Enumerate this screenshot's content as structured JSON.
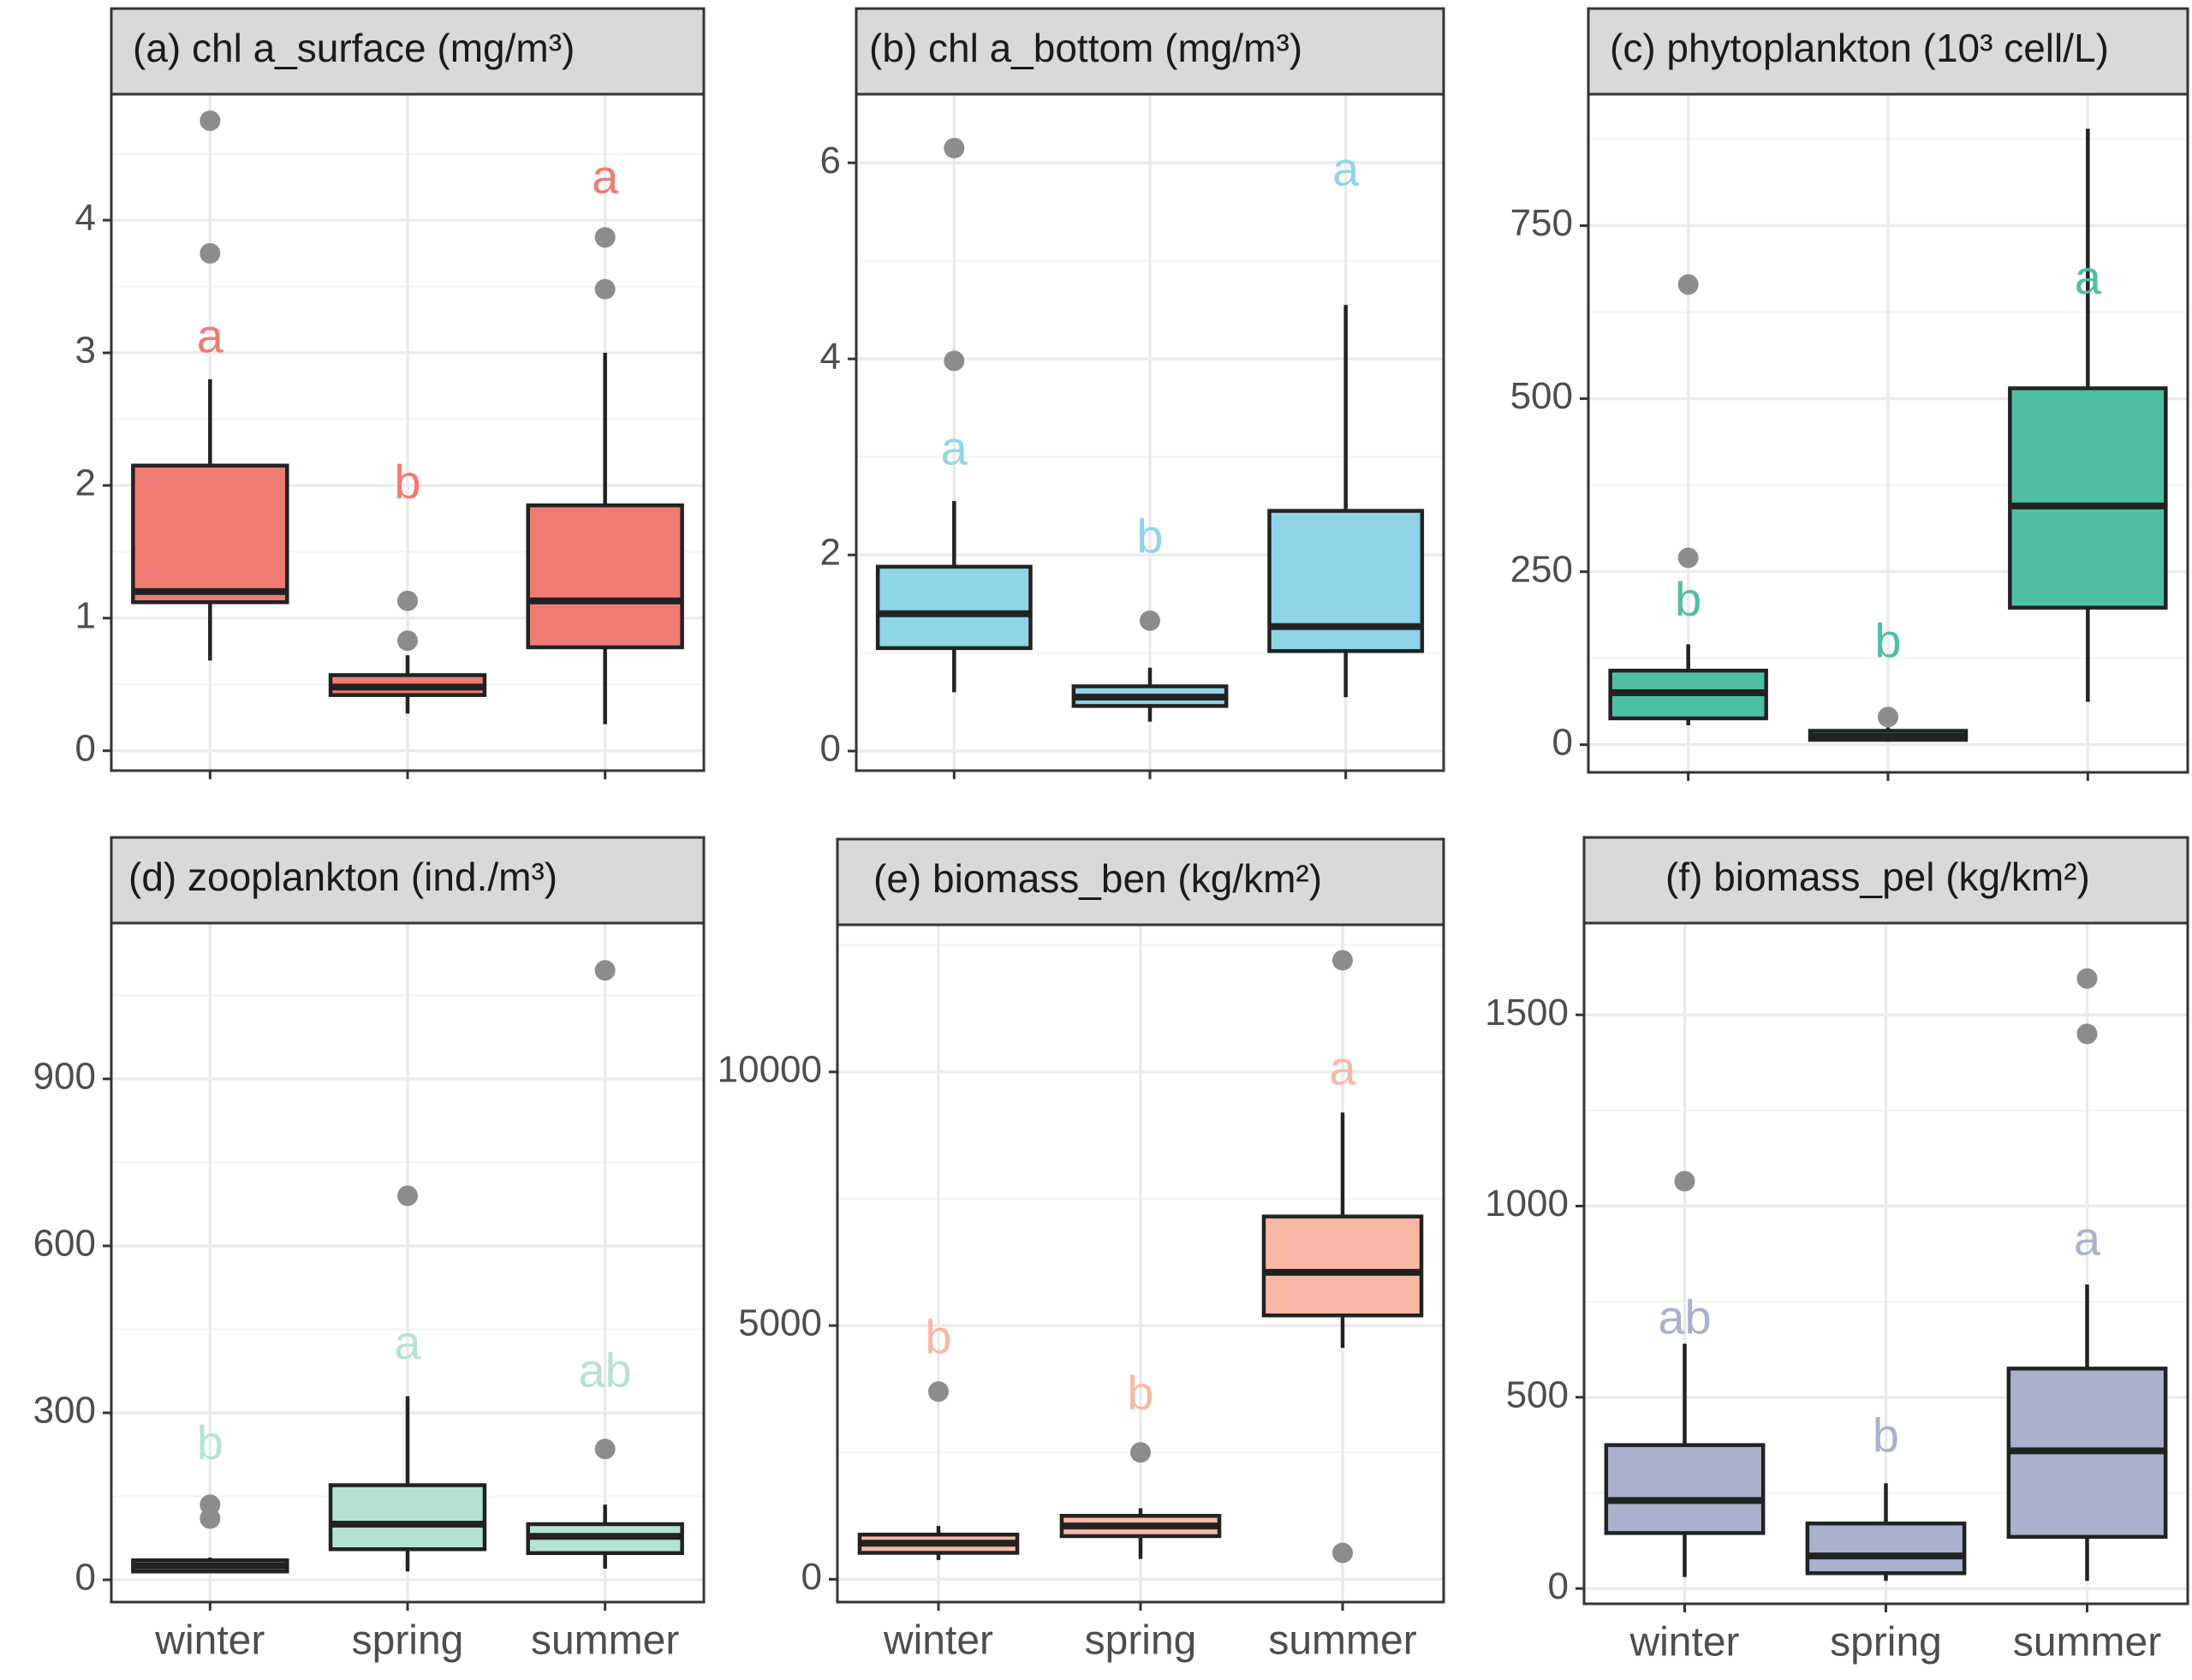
{
  "colors": {
    "panel_a": "#f07b72",
    "panel_b": "#8fd4e8",
    "panel_c": "#4fbfa3",
    "panel_d": "#b5e3d3",
    "panel_e": "#f8b8a5",
    "panel_f": "#aab1cd",
    "outlier": "#8c8c8c",
    "strip": "#d9d9d9",
    "grid": "#ebebeb",
    "frame": "#333333"
  },
  "chart_data": [
    {
      "id": "a",
      "type": "box",
      "title": "(a) chl a_surface (mg/m³)",
      "categories": [
        "winter",
        "spring",
        "summer"
      ],
      "ylim": [
        -0.15,
        4.95
      ],
      "yticks": [
        0,
        1,
        2,
        3,
        4
      ],
      "ytick_labels": [
        "0",
        "1",
        "2",
        "3",
        "4"
      ],
      "minor_ticks": [
        0.5,
        1.5,
        2.5,
        3.5,
        4.5
      ],
      "color_key": "panel_a",
      "show_x_labels": false,
      "boxes": [
        {
          "low": 0.68,
          "q1": 1.12,
          "median": 1.2,
          "q3": 2.15,
          "high": 2.8,
          "outliers": [
            3.75,
            4.75
          ]
        },
        {
          "low": 0.28,
          "q1": 0.42,
          "median": 0.48,
          "q3": 0.57,
          "high": 0.72,
          "outliers": [
            0.83,
            1.13
          ]
        },
        {
          "low": 0.2,
          "q1": 0.78,
          "median": 1.13,
          "q3": 1.85,
          "high": 3.0,
          "outliers": [
            3.48,
            3.87
          ]
        }
      ],
      "letters": [
        {
          "label": "a",
          "value": 3.1
        },
        {
          "label": "b",
          "value": 2.0
        },
        {
          "label": "a",
          "value": 4.3
        }
      ]
    },
    {
      "id": "b",
      "type": "box",
      "title": "(b) chl a_bottom (mg/m³)",
      "categories": [
        "winter",
        "spring",
        "summer"
      ],
      "ylim": [
        -0.2,
        6.7
      ],
      "yticks": [
        0,
        2,
        4,
        6
      ],
      "ytick_labels": [
        "0",
        "2",
        "4",
        "6"
      ],
      "minor_ticks": [
        1,
        3,
        5
      ],
      "color_key": "panel_b",
      "show_x_labels": false,
      "boxes": [
        {
          "low": 0.6,
          "q1": 1.05,
          "median": 1.4,
          "q3": 1.88,
          "high": 2.55,
          "outliers": [
            3.98,
            6.15
          ]
        },
        {
          "low": 0.3,
          "q1": 0.46,
          "median": 0.55,
          "q3": 0.66,
          "high": 0.85,
          "outliers": [
            1.33
          ]
        },
        {
          "low": 0.55,
          "q1": 1.02,
          "median": 1.27,
          "q3": 2.45,
          "high": 4.55,
          "outliers": []
        }
      ],
      "letters": [
        {
          "label": "a",
          "value": 3.05
        },
        {
          "label": "b",
          "value": 2.15
        },
        {
          "label": "a",
          "value": 5.9
        }
      ]
    },
    {
      "id": "c",
      "type": "box",
      "title": "(c) phytoplankton (10³ cell/L)",
      "categories": [
        "winter",
        "spring",
        "summer"
      ],
      "ylim": [
        -40,
        940
      ],
      "yticks": [
        0,
        250,
        500,
        750
      ],
      "ytick_labels": [
        "0",
        "250",
        "500",
        "750"
      ],
      "minor_ticks": [
        125,
        375,
        625,
        875
      ],
      "color_key": "panel_c",
      "show_x_labels": false,
      "boxes": [
        {
          "low": 28,
          "q1": 38,
          "median": 75,
          "q3": 107,
          "high": 145,
          "outliers": [
            270,
            665
          ]
        },
        {
          "low": 5,
          "q1": 7,
          "median": 12,
          "q3": 20,
          "high": 25,
          "outliers": [
            40
          ]
        },
        {
          "low": 62,
          "q1": 198,
          "median": 345,
          "q3": 515,
          "high": 890,
          "outliers": []
        }
      ],
      "letters": [
        {
          "label": "b",
          "value": 205
        },
        {
          "label": "b",
          "value": 145
        },
        {
          "label": "a",
          "value": 670
        }
      ]
    },
    {
      "id": "d",
      "type": "box",
      "title": "(d) zooplankton (ind./m³)",
      "categories": [
        "winter",
        "spring",
        "summer"
      ],
      "ylim": [
        -40,
        1180
      ],
      "yticks": [
        0,
        300,
        600,
        900
      ],
      "ytick_labels": [
        "0",
        "300",
        "600",
        "900"
      ],
      "minor_ticks": [
        150,
        450,
        750,
        1050
      ],
      "color_key": "panel_d",
      "show_x_labels": true,
      "boxes": [
        {
          "low": 12,
          "q1": 15,
          "median": 25,
          "q3": 35,
          "high": 40,
          "outliers": [
            110,
            135
          ]
        },
        {
          "low": 15,
          "q1": 55,
          "median": 100,
          "q3": 170,
          "high": 330,
          "outliers": [
            690
          ]
        },
        {
          "low": 20,
          "q1": 48,
          "median": 78,
          "q3": 100,
          "high": 135,
          "outliers": [
            235,
            1095
          ]
        }
      ],
      "letters": [
        {
          "label": "b",
          "value": 240
        },
        {
          "label": "a",
          "value": 420
        },
        {
          "label": "ab",
          "value": 370
        }
      ]
    },
    {
      "id": "e",
      "type": "box",
      "title": "(e) biomass_ben (kg/km²)",
      "categories": [
        "winter",
        "spring",
        "summer"
      ],
      "ylim": [
        -450,
        12900
      ],
      "yticks": [
        0,
        5000,
        10000
      ],
      "ytick_labels": [
        "0",
        "5000",
        "10000"
      ],
      "minor_ticks": [
        2500,
        7500,
        12500
      ],
      "color_key": "panel_e",
      "show_x_labels": true,
      "boxes": [
        {
          "low": 380,
          "q1": 520,
          "median": 710,
          "q3": 880,
          "high": 1050,
          "outliers": [
            3700
          ]
        },
        {
          "low": 400,
          "q1": 850,
          "median": 1050,
          "q3": 1250,
          "high": 1400,
          "outliers": [
            2500
          ]
        },
        {
          "low": 4560,
          "q1": 5200,
          "median": 6050,
          "q3": 7150,
          "high": 9200,
          "outliers": [
            12200,
            520
          ]
        }
      ],
      "letters": [
        {
          "label": "b",
          "value": 4700
        },
        {
          "label": "b",
          "value": 3600
        },
        {
          "label": "a",
          "value": 10000
        }
      ]
    },
    {
      "id": "f",
      "type": "box",
      "title": "(f) biomass_pel (kg/km²)",
      "categories": [
        "winter",
        "spring",
        "summer"
      ],
      "ylim": [
        -40,
        1740
      ],
      "yticks": [
        0,
        500,
        1000,
        1500
      ],
      "ytick_labels": [
        "0",
        "500",
        "1000",
        "1500"
      ],
      "minor_ticks": [
        250,
        750,
        1250
      ],
      "color_key": "panel_f",
      "show_x_labels": true,
      "boxes": [
        {
          "low": 30,
          "q1": 145,
          "median": 230,
          "q3": 375,
          "high": 640,
          "outliers": [
            1065
          ]
        },
        {
          "low": 20,
          "q1": 40,
          "median": 85,
          "q3": 170,
          "high": 275,
          "outliers": []
        },
        {
          "low": 20,
          "q1": 135,
          "median": 360,
          "q3": 575,
          "high": 795,
          "outliers": [
            1450,
            1595
          ]
        }
      ],
      "letters": [
        {
          "label": "ab",
          "value": 700
        },
        {
          "label": "b",
          "value": 390
        },
        {
          "label": "a",
          "value": 905
        }
      ]
    }
  ]
}
